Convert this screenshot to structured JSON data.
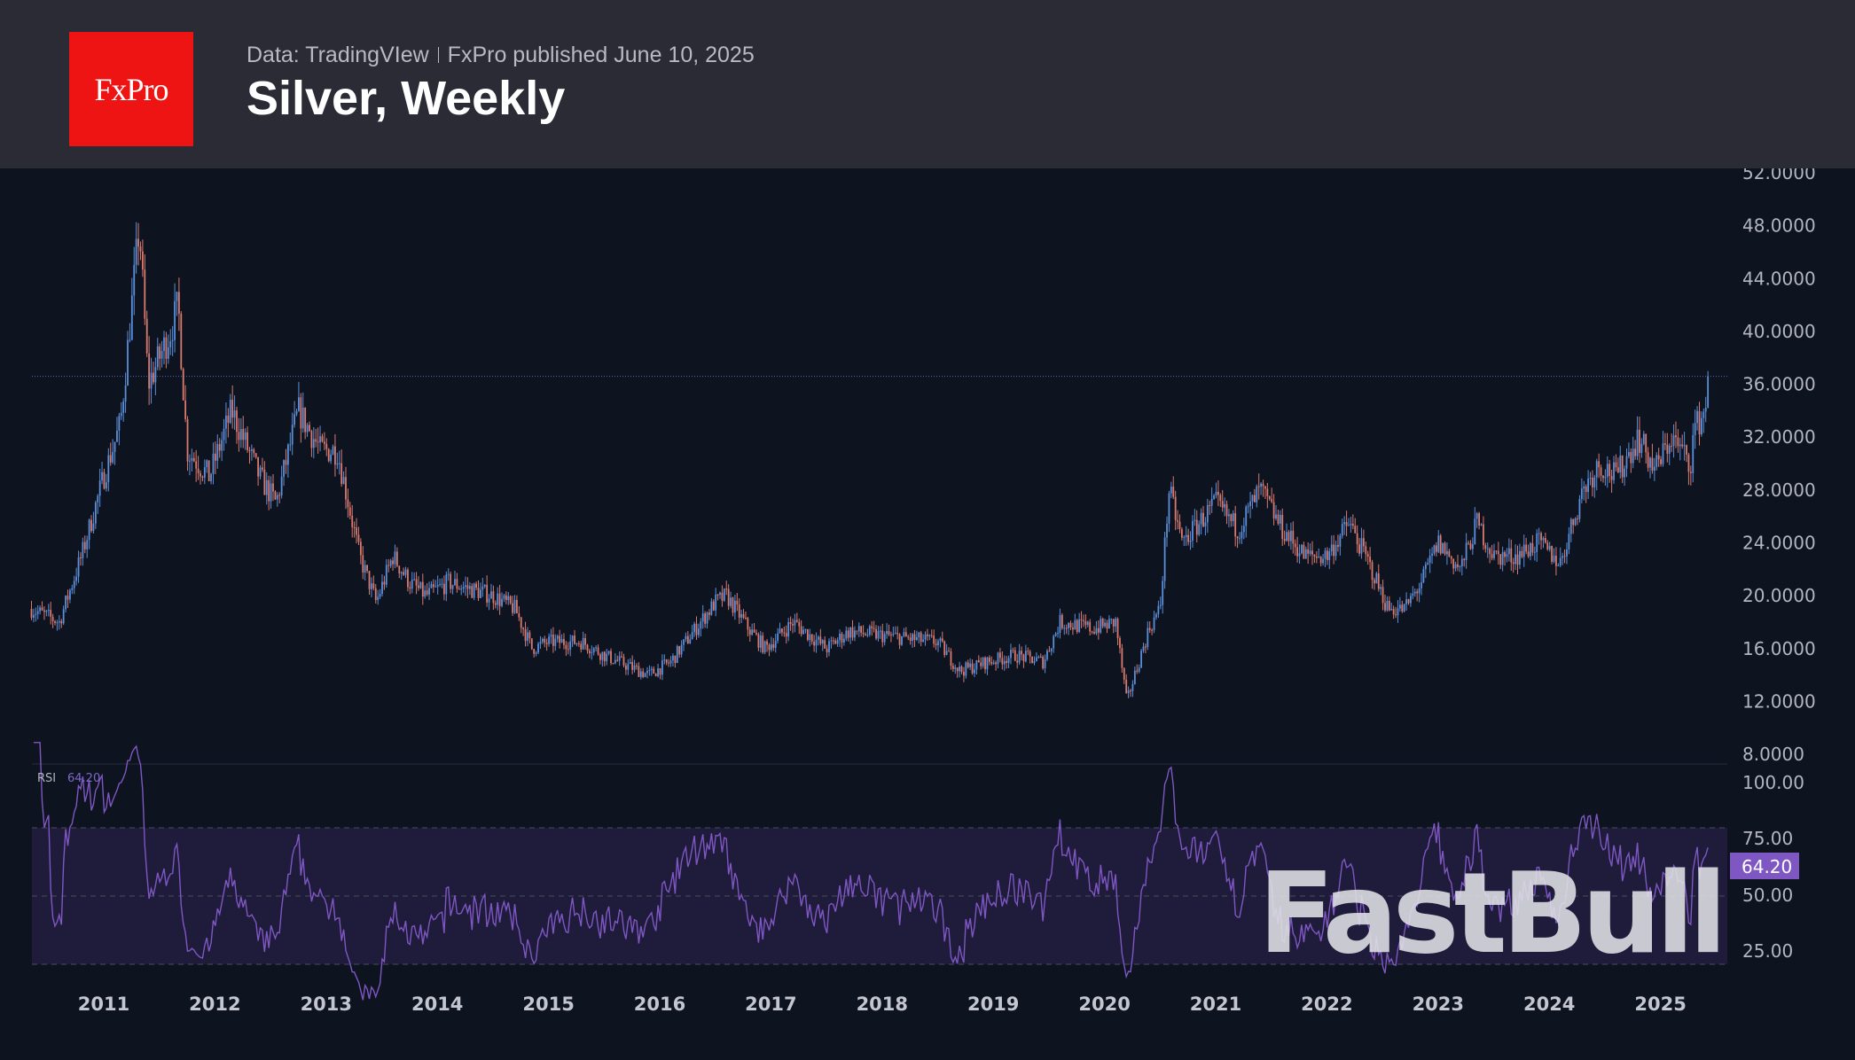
{
  "header": {
    "logo_text": "FxPro",
    "source": "Data: TradingVIew",
    "published": "FxPro published June 10, 2025",
    "title": "Silver, Weekly"
  },
  "watermark": "FastBull",
  "chart_data": [
    {
      "type": "candlestick",
      "title": "Silver, Weekly",
      "xlabel": "",
      "ylabel": "",
      "x_ticks": [
        "2011",
        "2012",
        "2013",
        "2014",
        "2015",
        "2016",
        "2017",
        "2018",
        "2019",
        "2020",
        "2021",
        "2022",
        "2023",
        "2024",
        "2025"
      ],
      "y_ticks": [
        "52.0000",
        "48.0000",
        "44.0000",
        "40.0000",
        "36.0000",
        "32.0000",
        "28.0000",
        "24.0000",
        "20.0000",
        "16.0000",
        "12.0000",
        "8.0000"
      ],
      "ylim": [
        8,
        52
      ],
      "xlim": [
        2010.35,
        2025.6
      ],
      "current_price_line": 36.6,
      "approx_close_keypoints": [
        [
          2010.35,
          19
        ],
        [
          2010.6,
          18
        ],
        [
          2010.8,
          23
        ],
        [
          2011.0,
          29
        ],
        [
          2011.15,
          33
        ],
        [
          2011.32,
          48
        ],
        [
          2011.4,
          36
        ],
        [
          2011.6,
          40
        ],
        [
          2011.67,
          42
        ],
        [
          2011.75,
          31
        ],
        [
          2011.95,
          29
        ],
        [
          2012.15,
          34
        ],
        [
          2012.4,
          29
        ],
        [
          2012.55,
          27
        ],
        [
          2012.75,
          34
        ],
        [
          2012.95,
          31
        ],
        [
          2013.1,
          31
        ],
        [
          2013.3,
          23
        ],
        [
          2013.45,
          19.5
        ],
        [
          2013.6,
          23
        ],
        [
          2013.75,
          21
        ],
        [
          2013.9,
          20
        ],
        [
          2014.1,
          21
        ],
        [
          2014.5,
          20
        ],
        [
          2014.7,
          19
        ],
        [
          2014.85,
          16
        ],
        [
          2015.0,
          16.5
        ],
        [
          2015.3,
          16.5
        ],
        [
          2015.5,
          15.5
        ],
        [
          2015.9,
          14
        ],
        [
          2016.1,
          15
        ],
        [
          2016.5,
          19.5
        ],
        [
          2016.6,
          20
        ],
        [
          2016.8,
          17.5
        ],
        [
          2016.95,
          16
        ],
        [
          2017.2,
          18
        ],
        [
          2017.5,
          16
        ],
        [
          2017.7,
          17.3
        ],
        [
          2018.0,
          17
        ],
        [
          2018.5,
          16.5
        ],
        [
          2018.7,
          14.3
        ],
        [
          2018.95,
          15
        ],
        [
          2019.2,
          15.5
        ],
        [
          2019.45,
          15
        ],
        [
          2019.6,
          18
        ],
        [
          2019.9,
          17.5
        ],
        [
          2020.1,
          18
        ],
        [
          2020.2,
          12
        ],
        [
          2020.4,
          17.5
        ],
        [
          2020.5,
          19
        ],
        [
          2020.58,
          28
        ],
        [
          2020.7,
          24
        ],
        [
          2021.0,
          27
        ],
        [
          2021.2,
          25
        ],
        [
          2021.4,
          28
        ],
        [
          2021.6,
          25
        ],
        [
          2021.8,
          23
        ],
        [
          2022.0,
          23
        ],
        [
          2022.2,
          25.5
        ],
        [
          2022.4,
          22
        ],
        [
          2022.55,
          19
        ],
        [
          2022.7,
          19
        ],
        [
          2022.85,
          21
        ],
        [
          2023.0,
          24
        ],
        [
          2023.2,
          22
        ],
        [
          2023.35,
          25.5
        ],
        [
          2023.5,
          23
        ],
        [
          2023.7,
          23
        ],
        [
          2023.9,
          24
        ],
        [
          2024.1,
          22.5
        ],
        [
          2024.3,
          28
        ],
        [
          2024.45,
          30
        ],
        [
          2024.6,
          29
        ],
        [
          2024.8,
          32
        ],
        [
          2024.95,
          29.5
        ],
        [
          2025.1,
          32
        ],
        [
          2025.27,
          30
        ],
        [
          2025.3,
          32.5
        ],
        [
          2025.4,
          34
        ],
        [
          2025.44,
          36.6
        ]
      ],
      "colors": {
        "up": "#5b8fd9",
        "down": "#d97a6e",
        "price_line": "#5b6ab0"
      }
    },
    {
      "type": "line",
      "title": "RSI",
      "legend_label": "RSI",
      "last_value": "64.20",
      "y_ticks": [
        "100.00",
        "75.00",
        "50.00",
        "25.00"
      ],
      "ylim": [
        0,
        100
      ],
      "band": [
        30,
        70
      ],
      "period": 14,
      "colors": {
        "line": "#7e57c2",
        "band": "#1f1b3a",
        "badge": "#7e57c2",
        "overbought_fill": "#3f7a4a",
        "oversold_fill": "#8a3350"
      }
    }
  ]
}
